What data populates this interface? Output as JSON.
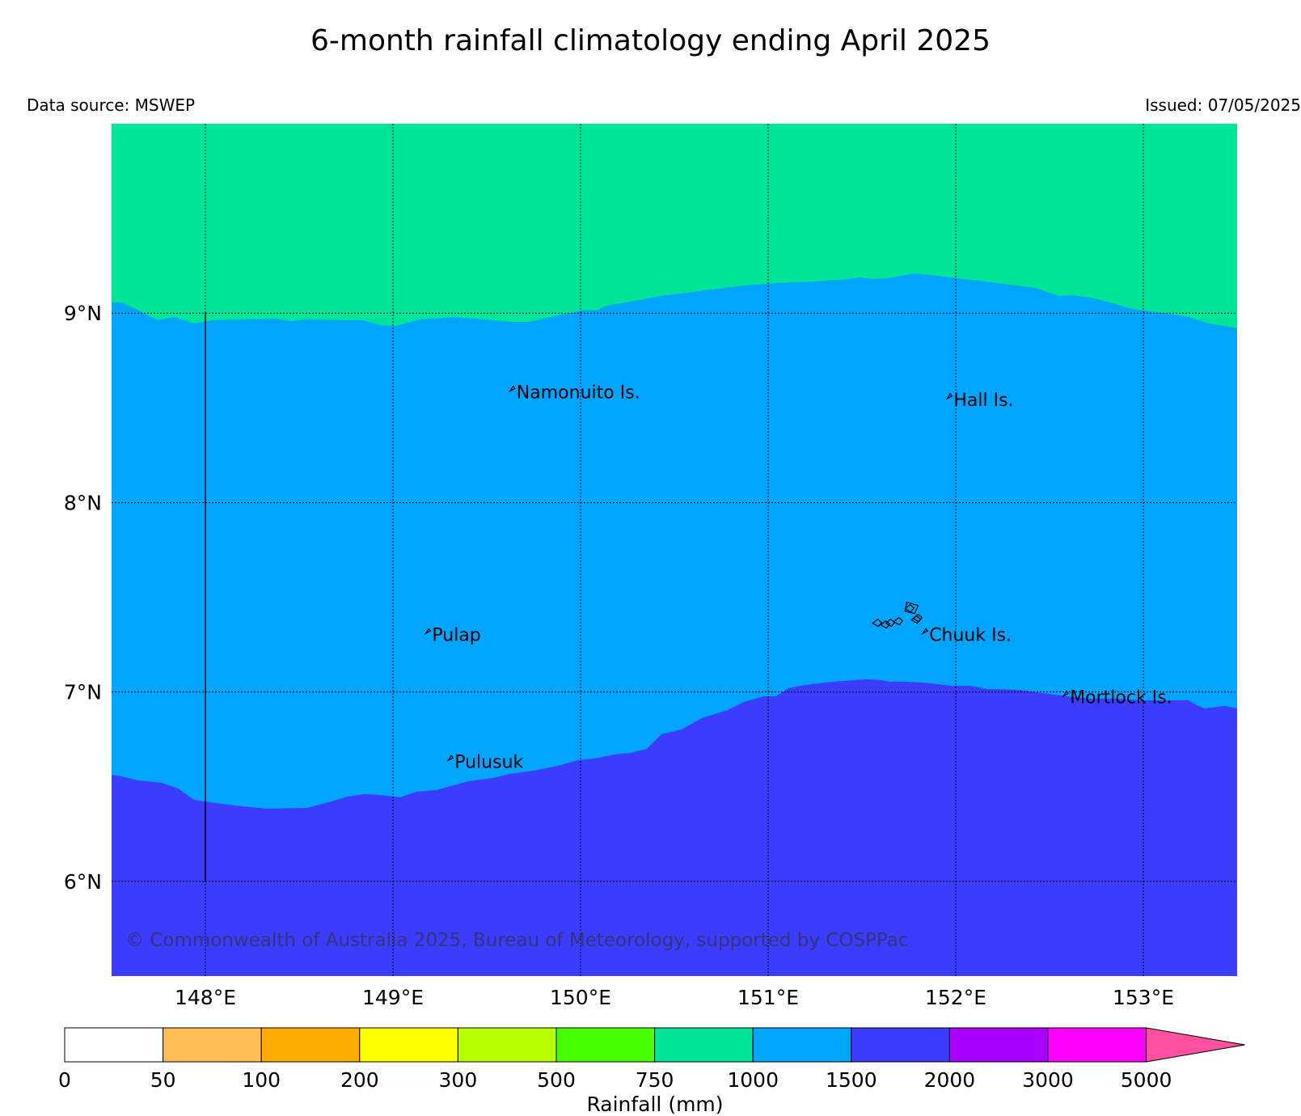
{
  "title": "6-month rainfall climatology ending April 2025",
  "data_source": "Data source: MSWEP",
  "issued": "Issued: 07/05/2025",
  "copyright": "© Commonwealth of Australia 2025, Bureau of Meteorology, supported by COSPPac",
  "map": {
    "lon_range": [
      147.5,
      153.5
    ],
    "lat_range": [
      5.5,
      10.0
    ],
    "grid": true,
    "lon_labels": [
      "148°E",
      "149°E",
      "150°E",
      "151°E",
      "152°E",
      "153°E"
    ],
    "lat_labels": [
      "6°N",
      "7°N",
      "8°N",
      "9°N"
    ],
    "places": [
      {
        "name": "Namonuito Is.",
        "lon": 149.65,
        "lat": 8.58
      },
      {
        "name": "Hall Is.",
        "lon": 151.98,
        "lat": 8.54
      },
      {
        "name": "Pulap",
        "lon": 149.2,
        "lat": 7.3
      },
      {
        "name": "Chuuk Is.",
        "lon": 151.85,
        "lat": 7.3
      },
      {
        "name": "Mortlock Is.",
        "lon": 152.6,
        "lat": 6.97
      },
      {
        "name": "Pulusuk",
        "lon": 149.32,
        "lat": 6.63
      }
    ],
    "zones": [
      {
        "range": "750-1000 mm",
        "color": "#00e598"
      },
      {
        "range": "1000-1500 mm",
        "color": "#00a5ff"
      },
      {
        "range": "1500-2000 mm",
        "color": "#3c3cff"
      }
    ]
  },
  "colorbar": {
    "label": "Rainfall (mm)",
    "ticks": [
      "0",
      "50",
      "100",
      "200",
      "300",
      "500",
      "750",
      "1000",
      "1500",
      "2000",
      "3000",
      "5000"
    ],
    "colors": [
      "#ffffff",
      "#ffbe5a",
      "#ffaa00",
      "#ffff00",
      "#b4ff00",
      "#46ff00",
      "#00e598",
      "#00a5ff",
      "#3c3cff",
      "#aa00ff",
      "#ff00ff"
    ],
    "extend_color": "#ff4fa0"
  }
}
